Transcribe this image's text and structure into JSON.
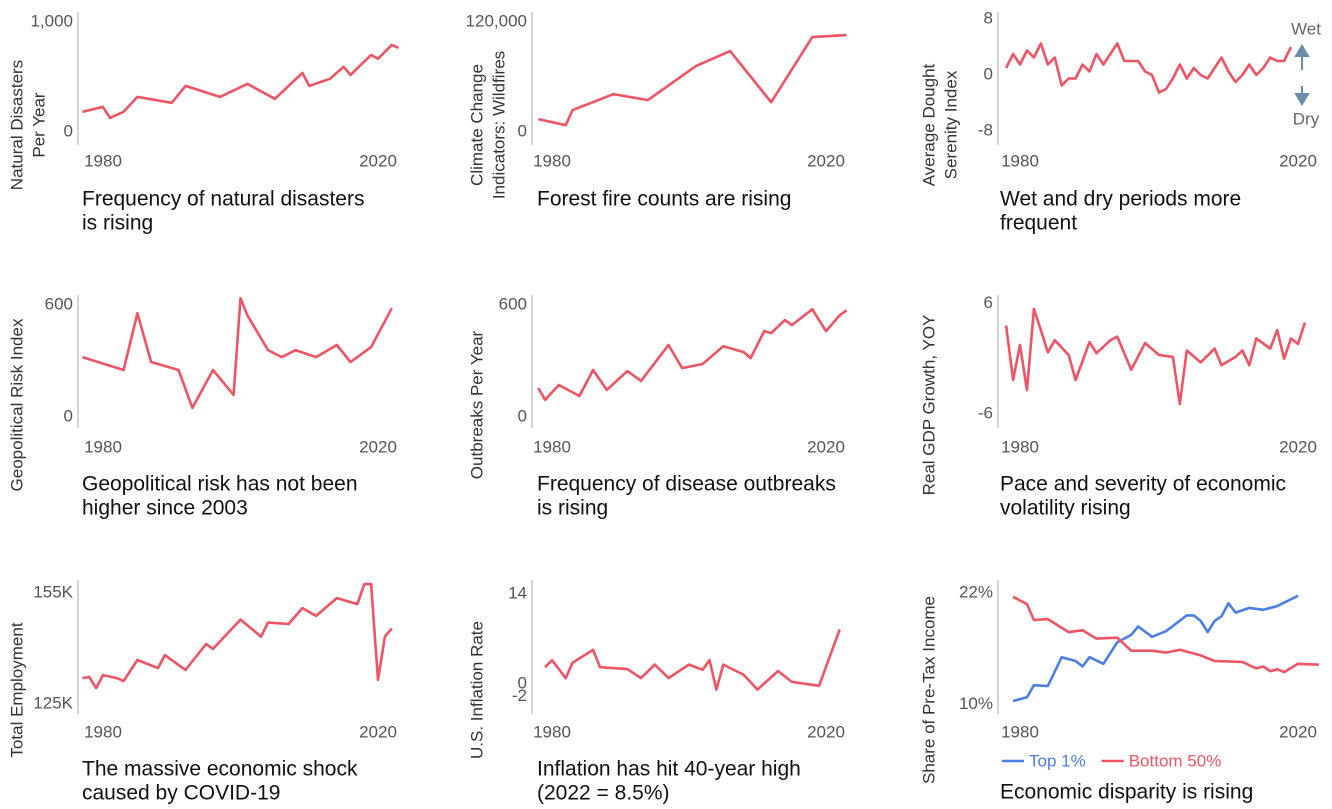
{
  "chart_data": [
    {
      "type": "line",
      "ylabel": [
        "Natural Disasters",
        "Per Year"
      ],
      "title": [
        "Frequency of natural disasters",
        "is rising"
      ],
      "color": "#ef5464",
      "x": [
        1977,
        1980,
        1981,
        1983,
        1985,
        1990,
        1992,
        1997,
        2001,
        2005,
        2009,
        2010,
        2013,
        2015,
        2016,
        2019,
        2020,
        2022,
        2023
      ],
      "values": [
        182,
        227,
        127,
        182,
        318,
        264,
        418,
        318,
        436,
        300,
        536,
        418,
        482,
        591,
        518,
        700,
        664,
        791,
        764
      ],
      "xlim": [
        1976,
        2024
      ],
      "xticks": [
        1980,
        2020
      ],
      "ylim": [
        -120,
        1090
      ],
      "yticks": [
        0,
        {
          "value": 1000,
          "label": "1,000"
        }
      ]
    },
    {
      "type": "line",
      "ylabel": [
        "Climate Change",
        "Indicators: Wildfires"
      ],
      "title": [
        "Forest fire counts are rising"
      ],
      "color": "#ef5464",
      "x": [
        1978,
        1982,
        1983,
        1989,
        1994,
        2001,
        2006,
        2012,
        2018,
        2023
      ],
      "values": [
        14200,
        7600,
        24000,
        41500,
        34900,
        72000,
        88400,
        32700,
        103600,
        105800
      ],
      "xlim": [
        1976,
        2024
      ],
      "xticks": [
        1980,
        2020
      ],
      "ylim": [
        -14000,
        131000
      ],
      "yticks": [
        0,
        {
          "value": 120000,
          "label": "120,000"
        }
      ]
    },
    {
      "type": "line",
      "ylabel": [
        "Average Dought",
        "Serenity Index"
      ],
      "title": [
        "Wet and dry periods more",
        "frequent"
      ],
      "color": "#ef5464",
      "annotations": [
        "Wet",
        "Dry"
      ],
      "x": [
        1978,
        1979,
        1980,
        1981,
        1982,
        1983,
        1984,
        1985,
        1986,
        1987,
        1988,
        1989,
        1990,
        1991,
        1992,
        1993,
        1994,
        1995,
        1996,
        1997,
        1998,
        1999,
        2000,
        2001,
        2002,
        2003,
        2004,
        2005,
        2006,
        2007,
        2008,
        2009,
        2010,
        2011,
        2012,
        2013,
        2014,
        2015,
        2016,
        2017,
        2018,
        2019
      ],
      "values": [
        1,
        3,
        1.5,
        3.5,
        2.5,
        4.5,
        1.5,
        2.5,
        -1.5,
        -0.5,
        -0.5,
        1.5,
        0.5,
        3,
        1.5,
        3,
        4.5,
        2,
        2,
        2,
        0.5,
        0,
        -2.5,
        -2,
        -0.5,
        1.5,
        -0.5,
        1,
        0,
        -0.5,
        1,
        2.5,
        0.5,
        -1,
        0,
        1.5,
        0,
        1,
        2.5,
        2,
        2,
        4
      ],
      "xlim": [
        1976,
        2024
      ],
      "xticks": [
        1980,
        2020
      ],
      "ylim": [
        -10,
        9
      ],
      "yticks": [
        -8,
        0,
        8
      ]
    },
    {
      "type": "line",
      "ylabel": [
        "Geopolitical Risk Index"
      ],
      "title": [
        "Geopolitical risk has not been",
        "higher since 2003"
      ],
      "color": "#ef5464",
      "x": [
        1977,
        1983,
        1985,
        1987,
        1991,
        1993,
        1996,
        1999,
        2000,
        2001,
        2004,
        2006,
        2008,
        2011,
        2014,
        2016,
        2019,
        2022
      ],
      "values": [
        321,
        252,
        557,
        295,
        252,
        48,
        252,
        118,
        637,
        546,
        359,
        321,
        359,
        321,
        386,
        295,
        375,
        584
      ],
      "xlim": [
        1976,
        2024
      ],
      "xticks": [
        1980,
        2020
      ],
      "ylim": [
        -60,
        655
      ],
      "yticks": [
        0,
        600
      ]
    },
    {
      "type": "line",
      "ylabel": [
        "Outbreaks Per Year"
      ],
      "title": [
        "Frequency of disease outbreaks",
        "is rising"
      ],
      "color": "#ef5464",
      "x": [
        1978,
        1979,
        1981,
        1984,
        1986,
        1988,
        1991,
        1993,
        1997,
        1999,
        2002,
        2005,
        2008,
        2009,
        2011,
        2012,
        2014,
        2015,
        2018,
        2020,
        2022,
        2023
      ],
      "values": [
        155,
        91,
        171,
        112,
        252,
        145,
        246,
        193,
        386,
        262,
        284,
        380,
        348,
        316,
        461,
        450,
        520,
        493,
        578,
        461,
        546,
        573
      ],
      "xlim": [
        1976,
        2024
      ],
      "xticks": [
        1980,
        2020
      ],
      "ylim": [
        -60,
        655
      ],
      "yticks": [
        0,
        600
      ]
    },
    {
      "type": "line",
      "ylabel": [
        "Real GDP Growth, YOY"
      ],
      "title": [
        "Pace and severity of economic",
        "volatility rising"
      ],
      "color": "#ef5464",
      "x": [
        1978,
        1979,
        1980,
        1981,
        1982,
        1983,
        1984,
        1985,
        1987,
        1988,
        1990,
        1991,
        1993,
        1994,
        1996,
        1998,
        2000,
        2002,
        2003,
        2004,
        2006,
        2008,
        2009,
        2011,
        2012,
        2013,
        2014,
        2016,
        2017,
        2018,
        2019,
        2020,
        2021
      ],
      "values": [
        3.6,
        -2.3,
        1.5,
        -3.4,
        5.4,
        3.1,
        0.7,
        2,
        0.4,
        -2.3,
        1.8,
        0.6,
        2,
        2.4,
        -1.2,
        1.7,
        0.4,
        0.2,
        -4.9,
        0.9,
        -0.4,
        1.1,
        -0.7,
        0.2,
        0.9,
        -0.7,
        2.2,
        1.1,
        3.1,
        0,
        2.2,
        1.6,
        3.9
      ],
      "xlim": [
        1976,
        2024
      ],
      "xticks": [
        1980,
        2020
      ],
      "ylim": [
        -7.5,
        6.9
      ],
      "yticks": [
        -6,
        6
      ]
    },
    {
      "type": "line",
      "ylabel": [
        "Total Employment"
      ],
      "title": [
        "The massive economic shock",
        "caused by COVID-19"
      ],
      "color": "#ef5464",
      "x": [
        1977,
        1978,
        1979,
        1980,
        1982,
        1983,
        1985,
        1988,
        1989,
        1992,
        1995,
        1996,
        2000,
        2003,
        2004,
        2007,
        2009,
        2011,
        2014,
        2017,
        2018,
        2019,
        2020,
        2021,
        2022
      ],
      "values": [
        132000,
        132300,
        129300,
        132800,
        132000,
        131200,
        136900,
        134700,
        138200,
        134200,
        141200,
        139900,
        147800,
        143200,
        147000,
        146600,
        150900,
        148800,
        153600,
        152000,
        157400,
        157400,
        131500,
        143200,
        145400
      ],
      "xlim": [
        1976,
        2024
      ],
      "xticks": [
        1980,
        2020
      ],
      "ylim": [
        122300,
        158500
      ],
      "yticks": [
        {
          "value": 125000,
          "label": "125K"
        },
        {
          "value": 155000,
          "label": "155K"
        }
      ]
    },
    {
      "type": "line",
      "ylabel": [
        "U.S. Inflation Rate"
      ],
      "title": [
        "Inflation has hit 40-year high",
        "(2022 = 8.5%)"
      ],
      "color": "#ef5464",
      "x": [
        1979,
        1980,
        1982,
        1983,
        1986,
        1987,
        1991,
        1993,
        1995,
        1997,
        2000,
        2002,
        2003,
        2004,
        2005,
        2008,
        2010,
        2013,
        2015,
        2019,
        2022
      ],
      "values": [
        2.6,
        3.7,
        0.9,
        3.3,
        5.3,
        2.6,
        2.3,
        0.9,
        3,
        0.9,
        3,
        2.2,
        3.7,
        -0.9,
        3,
        1.4,
        -0.9,
        2,
        0.3,
        -0.3,
        8.5
      ],
      "xlim": [
        1976,
        2024
      ],
      "xticks": [
        1980,
        2020
      ],
      "ylim": [
        -4.7,
        16.2
      ],
      "yticks": [
        -2,
        0,
        14
      ]
    },
    {
      "type": "line",
      "ylabel": [
        "Share of Pre-Tax Income"
      ],
      "title": [
        "Economic disparity is rising"
      ],
      "series": [
        {
          "name": "Top 1%",
          "color": "#4b7fe6",
          "x": [
            1979,
            1981,
            1982,
            1984,
            1986,
            1988,
            1989,
            1990,
            1992,
            1994,
            1996,
            1997,
            1999,
            2001,
            2004,
            2005,
            2006,
            2007,
            2008,
            2009,
            2010,
            2011,
            2013,
            2015,
            2017,
            2020
          ],
          "values": [
            10.4,
            10.8,
            12.1,
            12,
            15.1,
            14.7,
            14.1,
            15.1,
            14.4,
            16.7,
            17.5,
            18.4,
            17.3,
            17.9,
            19.6,
            19.6,
            19,
            17.8,
            19,
            19.5,
            20.9,
            19.9,
            20.4,
            20.2,
            20.6,
            21.7
          ]
        },
        {
          "name": "Bottom 50%",
          "color": "#ef5464",
          "x": [
            1979,
            1981,
            1982,
            1984,
            1987,
            1989,
            1991,
            1994,
            1996,
            1999,
            2001,
            2003,
            2006,
            2008,
            2012,
            2014,
            2015,
            2016,
            2017,
            2018,
            2020,
            2023
          ],
          "values": [
            21.6,
            20.8,
            19.1,
            19.2,
            17.8,
            18,
            17.1,
            17.2,
            15.8,
            15.8,
            15.6,
            15.9,
            15.3,
            14.7,
            14.6,
            13.9,
            14.1,
            13.6,
            13.8,
            13.5,
            14.4,
            14.3
          ]
        }
      ],
      "xlim": [
        1976,
        2024
      ],
      "xticks": [
        1980,
        2020
      ],
      "ylim": [
        9,
        23.4
      ],
      "yticks": [
        {
          "value": 10,
          "label": "10%"
        },
        {
          "value": 22,
          "label": "22%"
        }
      ]
    }
  ]
}
